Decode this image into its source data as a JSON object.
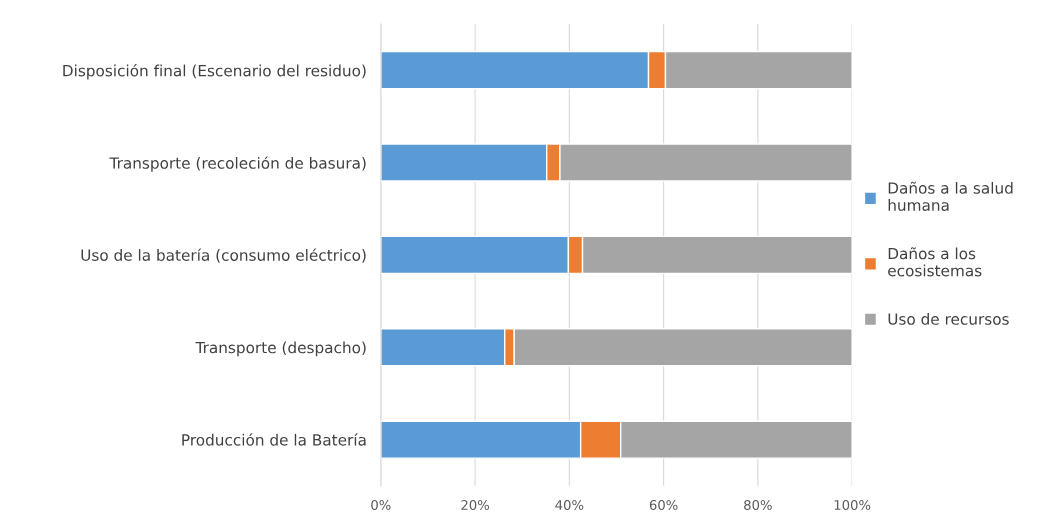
{
  "chart_data": {
    "type": "bar",
    "orientation": "horizontal",
    "stacked": true,
    "categories": [
      "Disposición final (Escenario del residuo)",
      "Transporte (recoleción de basura)",
      "Uso de la batería (consumo eléctrico)",
      "Transporte (despacho)",
      "Producción de la Batería"
    ],
    "series": [
      {
        "name": "Daños a la salud humana",
        "color": "#5b9bd5",
        "values": [
          56.8,
          35.2,
          39.8,
          26.3,
          42.4
        ]
      },
      {
        "name": "Daños a los ecosistemas",
        "color": "#ed7d31",
        "values": [
          3.6,
          2.8,
          3.0,
          2.0,
          8.5
        ]
      },
      {
        "name": "Uso de recursos",
        "color": "#a5a5a5",
        "values": [
          39.6,
          62.0,
          57.2,
          71.7,
          49.1
        ]
      }
    ],
    "xlim": [
      0,
      100
    ],
    "xticks": [
      {
        "value": 0,
        "label": "0%"
      },
      {
        "value": 20,
        "label": "20%"
      },
      {
        "value": 40,
        "label": "40%"
      },
      {
        "value": 60,
        "label": "60%"
      },
      {
        "value": 80,
        "label": "80%"
      },
      {
        "value": 100,
        "label": "100%"
      }
    ],
    "grid": "x",
    "legend": "right"
  }
}
